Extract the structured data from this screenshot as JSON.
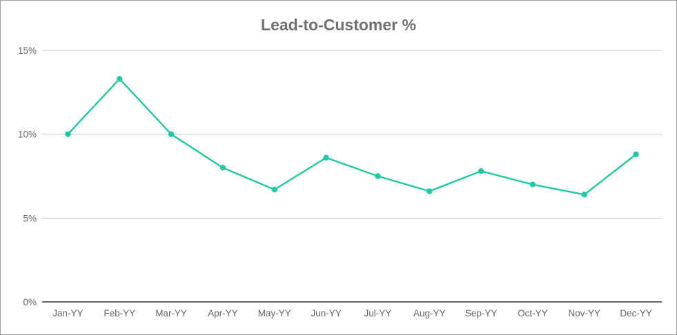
{
  "chart_data": {
    "type": "line",
    "title": "Lead-to-Customer %",
    "xlabel": "",
    "ylabel": "",
    "categories": [
      "Jan-YY",
      "Feb-YY",
      "Mar-YY",
      "Apr-YY",
      "May-YY",
      "Jun-YY",
      "Jul-YY",
      "Aug-YY",
      "Sep-YY",
      "Oct-YY",
      "Nov-YY",
      "Dec-YY"
    ],
    "series": [
      {
        "values": [
          10.0,
          13.3,
          10.0,
          8.0,
          6.7,
          8.6,
          7.5,
          6.6,
          7.8,
          7.0,
          6.4,
          8.8
        ]
      }
    ],
    "ylim": [
      0,
      15
    ],
    "yticks": [
      0,
      5,
      10,
      15
    ],
    "ytick_labels": [
      "0%",
      "5%",
      "10%",
      "15%"
    ],
    "grid": true,
    "legend": "none",
    "colors": {
      "line": "#1ec9a4",
      "grid": "#c8c8c8",
      "axis": "#333333"
    }
  }
}
